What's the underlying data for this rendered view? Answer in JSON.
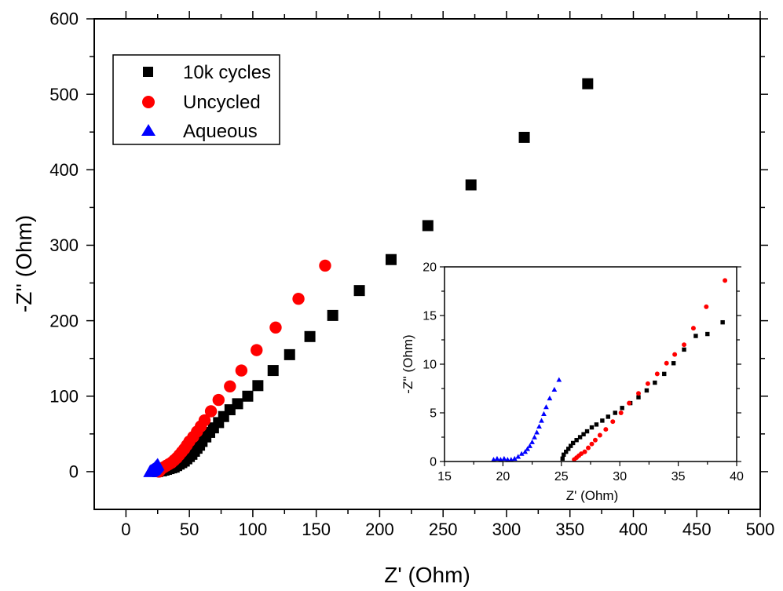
{
  "chart_data": [
    {
      "panel": "main",
      "type": "scatter",
      "xlabel": "Z' (Ohm)",
      "ylabel": "-Z'' (Ohm)",
      "xlim": [
        -25,
        500
      ],
      "ylim": [
        -50,
        600
      ],
      "xticks": [
        "0",
        "50",
        "100",
        "150",
        "200",
        "250",
        "300",
        "350",
        "400",
        "450",
        "500"
      ],
      "yticks": [
        "0",
        "100",
        "200",
        "300",
        "400",
        "500",
        "600"
      ],
      "legend": {
        "placement": "top-left",
        "entries": [
          "10k cycles",
          "Uncycled",
          "Aqueous"
        ]
      },
      "series": [
        {
          "name": "10k cycles",
          "marker": "square",
          "color": "#000000",
          "points": [
            [
              25,
              0
            ],
            [
              28,
              1
            ],
            [
              30,
              2
            ],
            [
              32,
              3
            ],
            [
              34,
              4
            ],
            [
              36,
              5
            ],
            [
              38,
              6
            ],
            [
              40,
              8
            ],
            [
              42,
              10
            ],
            [
              44,
              12
            ],
            [
              46,
              14
            ],
            [
              48,
              17
            ],
            [
              50,
              20
            ],
            [
              52,
              23
            ],
            [
              54,
              27
            ],
            [
              56,
              31
            ],
            [
              58,
              35
            ],
            [
              60,
              40
            ],
            [
              63,
              46
            ],
            [
              66,
              52
            ],
            [
              69,
              58
            ],
            [
              73,
              65
            ],
            [
              77,
              73
            ],
            [
              82,
              82
            ],
            [
              88,
              90
            ],
            [
              96,
              100
            ],
            [
              104,
              114
            ],
            [
              116,
              134
            ],
            [
              129,
              155
            ],
            [
              145,
              179
            ],
            [
              163,
              207
            ],
            [
              184,
              240
            ],
            [
              209,
              281
            ],
            [
              238,
              326
            ],
            [
              272,
              380
            ],
            [
              314,
              443
            ],
            [
              364,
              514
            ]
          ]
        },
        {
          "name": "Uncycled",
          "marker": "circle",
          "color": "#ff0000",
          "points": [
            [
              26,
              0
            ],
            [
              27,
              2
            ],
            [
              28,
              4
            ],
            [
              30,
              6
            ],
            [
              32,
              8
            ],
            [
              34,
              10
            ],
            [
              36,
              12
            ],
            [
              38,
              15
            ],
            [
              40,
              18
            ],
            [
              42,
              22
            ],
            [
              44,
              26
            ],
            [
              46,
              30
            ],
            [
              48,
              35
            ],
            [
              50,
              40
            ],
            [
              53,
              46
            ],
            [
              56,
              53
            ],
            [
              59,
              60
            ],
            [
              62,
              68
            ],
            [
              67,
              80
            ],
            [
              73,
              95
            ],
            [
              82,
              113
            ],
            [
              91,
              134
            ],
            [
              103,
              161
            ],
            [
              118,
              191
            ],
            [
              136,
              229
            ],
            [
              157,
              273
            ]
          ]
        },
        {
          "name": "Aqueous",
          "marker": "triangle",
          "color": "#0000ff",
          "points": [
            [
              19,
              0
            ],
            [
              19.5,
              0.5
            ],
            [
              20,
              1
            ],
            [
              20.5,
              1.5
            ],
            [
              21,
              2
            ],
            [
              21.5,
              2.5
            ],
            [
              22,
              3
            ],
            [
              22.5,
              4
            ],
            [
              23,
              5
            ],
            [
              23.5,
              6
            ],
            [
              24,
              7
            ],
            [
              24.5,
              8
            ],
            [
              25,
              9
            ]
          ]
        }
      ]
    },
    {
      "panel": "inset",
      "type": "scatter",
      "xlabel": "Z' (Ohm)",
      "ylabel": "-Z'' (Ohm)",
      "xlim": [
        15,
        40
      ],
      "ylim": [
        0,
        20
      ],
      "xticks": [
        "15",
        "20",
        "25",
        "30",
        "35",
        "40"
      ],
      "yticks": [
        "0",
        "5",
        "10",
        "15",
        "20"
      ],
      "series": [
        {
          "name": "10k cycles",
          "marker": "square",
          "color": "#000000",
          "points": [
            [
              25.1,
              0.3
            ],
            [
              25.2,
              0.7
            ],
            [
              25.4,
              1.0
            ],
            [
              25.6,
              1.3
            ],
            [
              25.8,
              1.6
            ],
            [
              26.0,
              1.9
            ],
            [
              26.3,
              2.2
            ],
            [
              26.6,
              2.5
            ],
            [
              26.9,
              2.8
            ],
            [
              27.2,
              3.1
            ],
            [
              27.6,
              3.5
            ],
            [
              28.0,
              3.8
            ],
            [
              28.5,
              4.2
            ],
            [
              29.0,
              4.6
            ],
            [
              29.6,
              5.0
            ],
            [
              30.2,
              5.5
            ],
            [
              30.9,
              6.0
            ],
            [
              31.6,
              6.6
            ],
            [
              32.3,
              7.3
            ],
            [
              33.0,
              8.1
            ],
            [
              33.8,
              9.0
            ],
            [
              34.6,
              10.1
            ],
            [
              35.5,
              11.5
            ],
            [
              36.5,
              12.9
            ],
            [
              37.5,
              13.1
            ],
            [
              38.8,
              14.3
            ]
          ]
        },
        {
          "name": "Uncycled",
          "marker": "circle",
          "color": "#ff0000",
          "points": [
            [
              26.1,
              0.2
            ],
            [
              26.3,
              0.4
            ],
            [
              26.5,
              0.6
            ],
            [
              26.7,
              0.8
            ],
            [
              27.0,
              1.0
            ],
            [
              27.3,
              1.4
            ],
            [
              27.6,
              1.8
            ],
            [
              27.9,
              2.2
            ],
            [
              28.3,
              2.7
            ],
            [
              28.8,
              3.3
            ],
            [
              29.4,
              4.1
            ],
            [
              30.1,
              5.0
            ],
            [
              30.8,
              6.0
            ],
            [
              31.6,
              7.0
            ],
            [
              32.4,
              8.0
            ],
            [
              33.2,
              9.0
            ],
            [
              34.0,
              10.1
            ],
            [
              34.7,
              11.0
            ],
            [
              35.5,
              12.0
            ],
            [
              36.3,
              13.7
            ],
            [
              37.4,
              15.9
            ],
            [
              39.0,
              18.6
            ]
          ]
        },
        {
          "name": "Aqueous",
          "marker": "triangle",
          "color": "#0000ff",
          "points": [
            [
              19.2,
              0.2
            ],
            [
              19.5,
              0.3
            ],
            [
              19.8,
              0.2
            ],
            [
              20.1,
              0.3
            ],
            [
              20.4,
              0.2
            ],
            [
              20.7,
              0.2
            ],
            [
              21.0,
              0.3
            ],
            [
              21.3,
              0.5
            ],
            [
              21.6,
              0.8
            ],
            [
              21.9,
              1.0
            ],
            [
              22.1,
              1.3
            ],
            [
              22.3,
              1.6
            ],
            [
              22.5,
              2.0
            ],
            [
              22.7,
              2.5
            ],
            [
              22.9,
              3.0
            ],
            [
              23.1,
              3.6
            ],
            [
              23.3,
              4.2
            ],
            [
              23.5,
              4.9
            ],
            [
              23.7,
              5.6
            ],
            [
              24.0,
              6.5
            ],
            [
              24.4,
              7.4
            ],
            [
              24.8,
              8.4
            ]
          ]
        }
      ]
    }
  ]
}
